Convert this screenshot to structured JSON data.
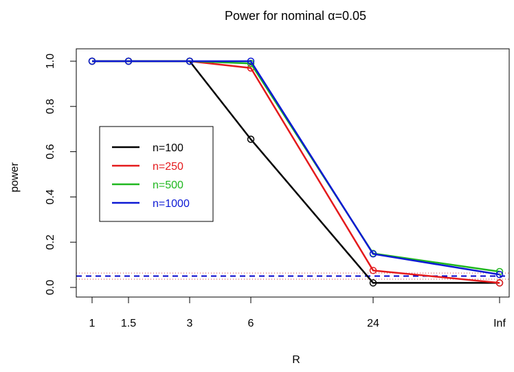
{
  "chart_data": {
    "type": "line",
    "title_prefix": "Power for nominal ",
    "title_symbol": "α",
    "title_suffix": "=0.05",
    "xlabel": "R",
    "ylabel": "power",
    "categories": [
      "1",
      "1.5",
      "3",
      "6",
      "24",
      "Inf"
    ],
    "ylim": [
      0,
      1
    ],
    "yticks": [
      "0.0",
      "0.2",
      "0.4",
      "0.6",
      "0.8",
      "1.0"
    ],
    "yticks_values": [
      0,
      0.2,
      0.4,
      0.6,
      0.8,
      1.0
    ],
    "legend_position": "left-center",
    "grid": false,
    "series": [
      {
        "name": "n=100",
        "color": "#000000",
        "values": [
          1.0,
          1.0,
          1.0,
          0.655,
          0.02,
          0.02
        ]
      },
      {
        "name": "n=250",
        "color": "#e41a1c",
        "values": [
          1.0,
          1.0,
          1.0,
          0.97,
          0.075,
          0.02
        ]
      },
      {
        "name": "n=500",
        "color": "#1fb71f",
        "values": [
          1.0,
          1.0,
          1.0,
          0.99,
          0.15,
          0.07
        ]
      },
      {
        "name": "n=1000",
        "color": "#0c19d4",
        "values": [
          1.0,
          1.0,
          1.0,
          1.0,
          0.148,
          0.057
        ]
      }
    ],
    "reference_lines": [
      {
        "style": "dashed",
        "color": "#0000cc",
        "y": 0.05
      },
      {
        "style": "dotted",
        "color": "#cc3333",
        "y": 0.0365
      },
      {
        "style": "dotted",
        "color": "#cc3333",
        "y": 0.0635
      }
    ]
  }
}
